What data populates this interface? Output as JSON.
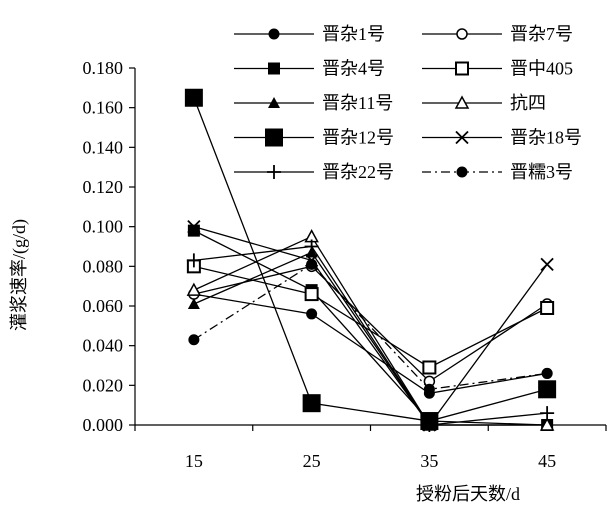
{
  "chart_data": {
    "type": "line",
    "xlabel": "授粉后天数/d",
    "ylabel": "灌浆速率/(g/d)",
    "x": [
      15,
      25,
      35,
      45
    ],
    "x_ticks": [
      "15",
      "25",
      "35",
      "45"
    ],
    "ylim": [
      0,
      0.18
    ],
    "y_ticks": [
      "0.000",
      "0.020",
      "0.040",
      "0.060",
      "0.080",
      "0.100",
      "0.120",
      "0.140",
      "0.160",
      "0.180"
    ],
    "grid": false,
    "legend_position": "top-right",
    "series": [
      {
        "name": "晋杂1号",
        "marker": "circle-filled",
        "dash": "solid",
        "values": [
          0.066,
          0.056,
          0.016,
          0.026
        ]
      },
      {
        "name": "晋杂7号",
        "marker": "circle-open",
        "dash": "solid",
        "values": [
          0.066,
          0.08,
          0.022,
          0.061
        ]
      },
      {
        "name": "晋杂4号",
        "marker": "square-filled",
        "dash": "solid",
        "values": [
          0.098,
          0.068,
          0.002,
          0.0
        ]
      },
      {
        "name": "晋中405",
        "marker": "square-open",
        "dash": "solid",
        "values": [
          0.08,
          0.066,
          0.029,
          0.059
        ]
      },
      {
        "name": "晋杂11号",
        "marker": "triangle-filled",
        "dash": "solid",
        "values": [
          0.061,
          0.087,
          0.0,
          0.0
        ]
      },
      {
        "name": "抗四",
        "marker": "triangle-open",
        "dash": "solid",
        "values": [
          0.068,
          0.095,
          0.0,
          0.0
        ]
      },
      {
        "name": "晋杂12号",
        "marker": "square-filled-large",
        "dash": "solid",
        "values": [
          0.165,
          0.011,
          0.002,
          0.018
        ]
      },
      {
        "name": "晋杂18号",
        "marker": "x",
        "dash": "solid",
        "values": [
          0.1,
          0.083,
          0.0,
          0.081
        ]
      },
      {
        "name": "晋杂22号",
        "marker": "plus",
        "dash": "solid",
        "values": [
          0.083,
          0.09,
          0.0,
          0.006
        ]
      },
      {
        "name": "晋糯3号",
        "marker": "circle-filled",
        "dash": "dashdot",
        "values": [
          0.043,
          0.081,
          0.018,
          0.026
        ]
      }
    ]
  }
}
